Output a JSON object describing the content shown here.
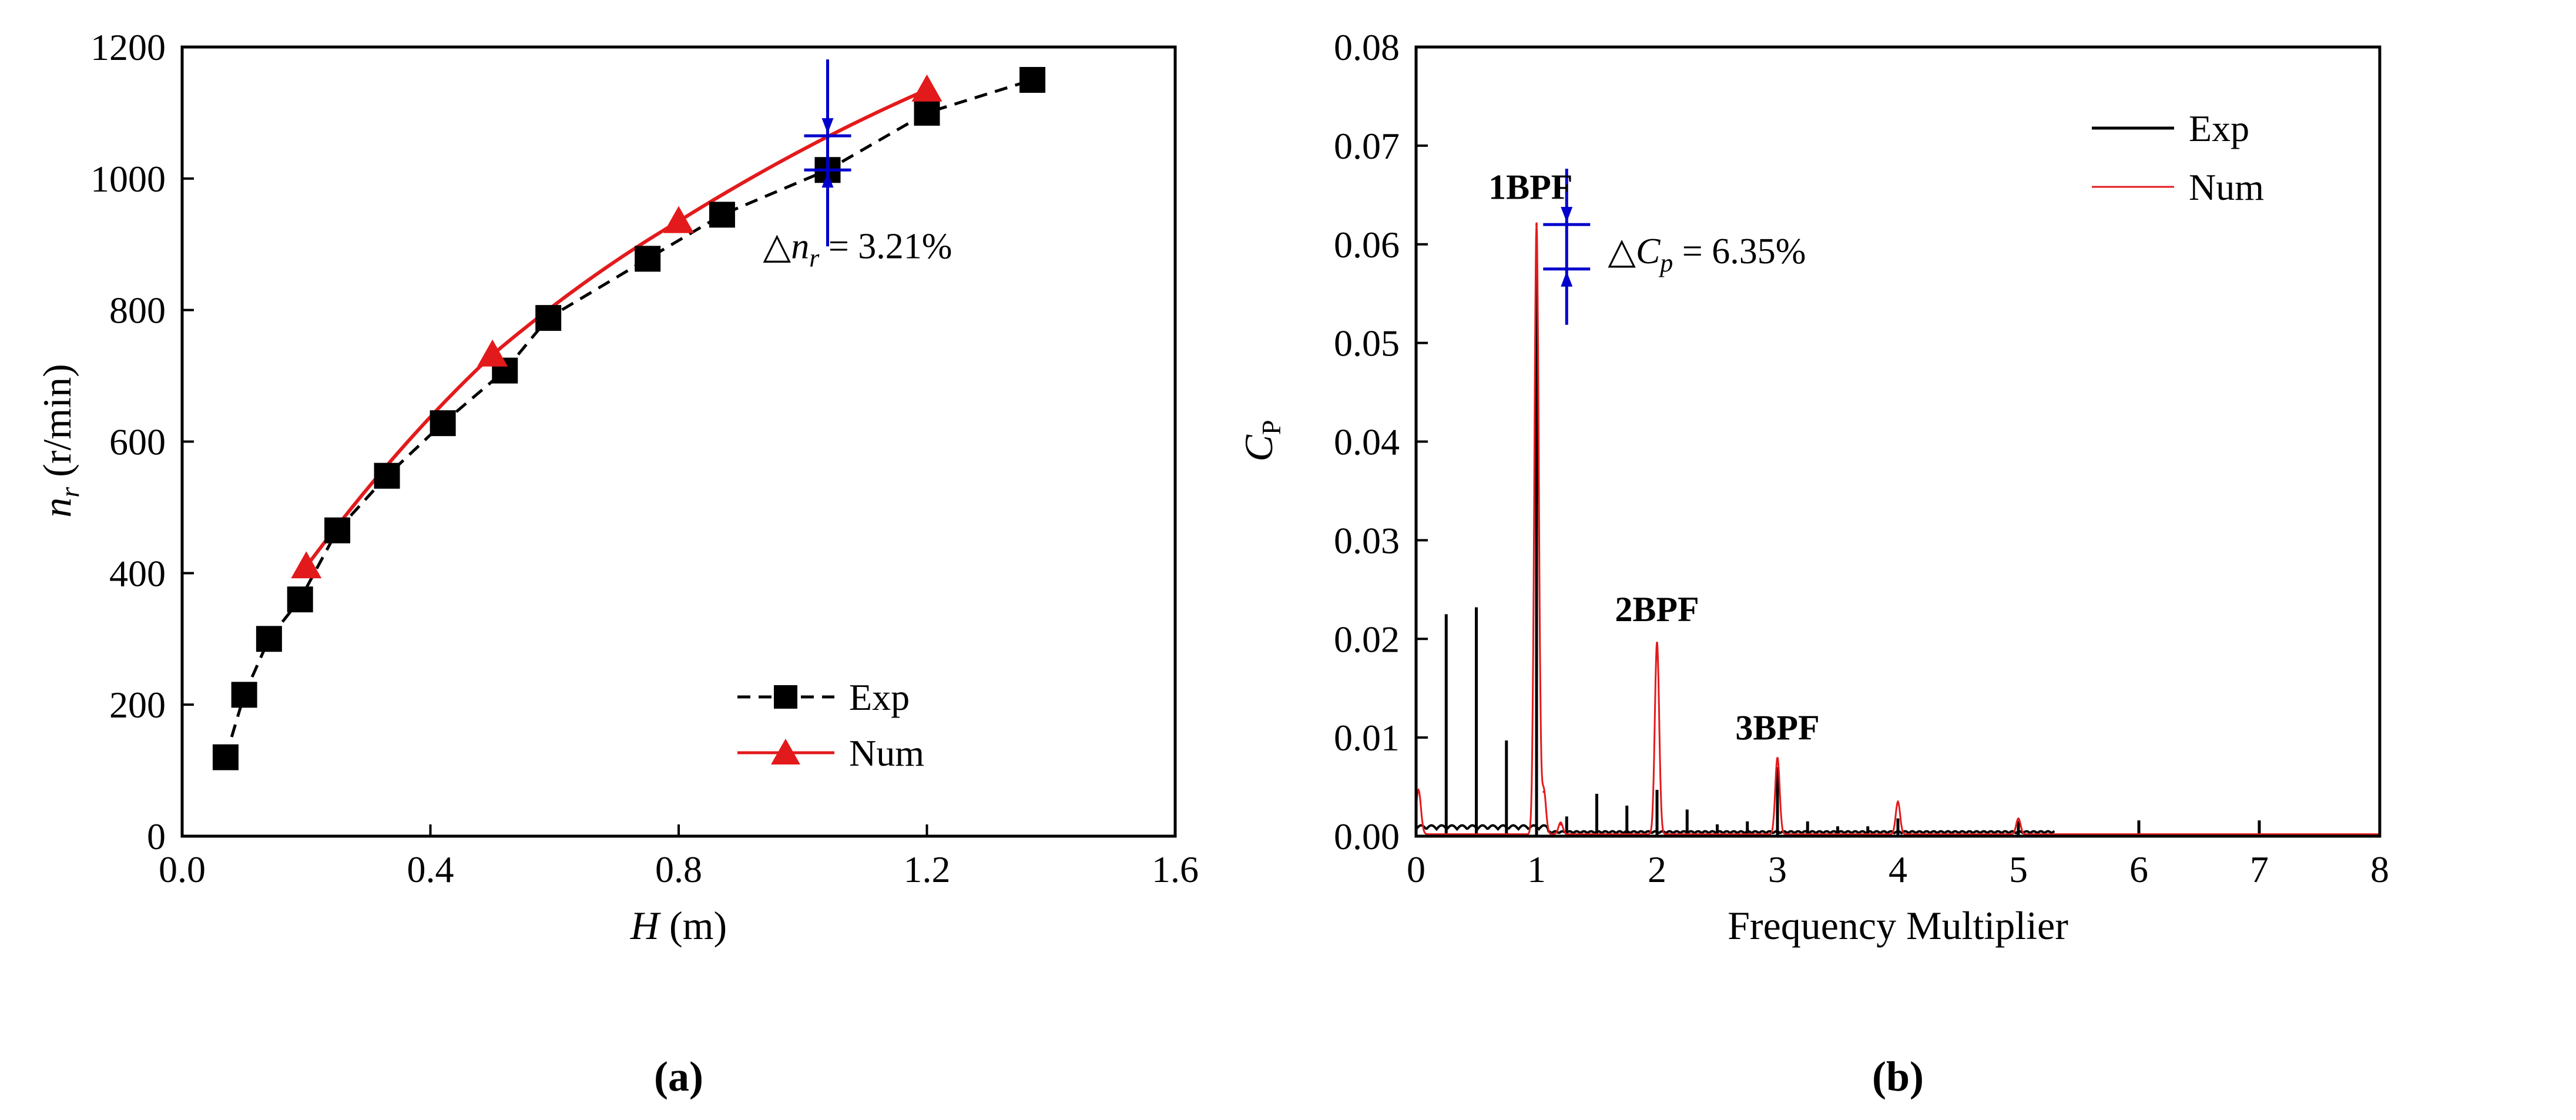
{
  "chart_data": [
    {
      "type": "line",
      "panel_label": "(a)",
      "xlabel": "H (m)",
      "ylabel": "n_r (r/min)",
      "xlim": [
        0.0,
        1.6
      ],
      "ylim": [
        0,
        1200
      ],
      "xticks": [
        0.0,
        0.4,
        0.8,
        1.2,
        1.6
      ],
      "xtick_labels": [
        "0.0",
        "0.4",
        "0.8",
        "1.2",
        "1.6"
      ],
      "yticks": [
        0,
        200,
        400,
        600,
        800,
        1000,
        1200
      ],
      "ytick_labels": [
        "0",
        "200",
        "400",
        "600",
        "800",
        "1000",
        "1200"
      ],
      "series": [
        {
          "name": "Exp",
          "style": "dashed",
          "marker": "square",
          "color": "#000000",
          "x": [
            0.07,
            0.1,
            0.14,
            0.19,
            0.25,
            0.33,
            0.42,
            0.52,
            0.59,
            0.75,
            0.87,
            1.04,
            1.2,
            1.37
          ],
          "y": [
            120,
            215,
            300,
            360,
            465,
            548,
            628,
            708,
            788,
            878,
            945,
            1013,
            1100,
            1150
          ]
        },
        {
          "name": "Num",
          "style": "solid",
          "marker": "triangle",
          "color": "#e31a1c",
          "x": [
            0.2,
            0.5,
            0.8,
            1.2
          ],
          "y": [
            410,
            732,
            935,
            1135
          ]
        }
      ],
      "annotation": {
        "prefix": "△",
        "symbol": "n",
        "subscript": "r",
        "value_text": "= 3.21%",
        "at_x": 1.04,
        "from_y": 1013,
        "to_y": 1065
      },
      "legend": {
        "position": "lower-right",
        "exp_label": "Exp",
        "num_label": "Num"
      }
    },
    {
      "type": "line",
      "panel_label": "(b)",
      "xlabel": "Frequency Multiplier",
      "ylabel": "C",
      "ylabel_subscript": "P",
      "xlim": [
        0,
        8
      ],
      "ylim": [
        0.0,
        0.08
      ],
      "xticks": [
        0,
        1,
        2,
        3,
        4,
        5,
        6,
        7,
        8
      ],
      "xtick_labels": [
        "0",
        "1",
        "2",
        "3",
        "4",
        "5",
        "6",
        "7",
        "8"
      ],
      "yticks": [
        0.0,
        0.01,
        0.02,
        0.03,
        0.04,
        0.05,
        0.06,
        0.07,
        0.08
      ],
      "ytick_labels": [
        "0.00",
        "0.01",
        "0.02",
        "0.03",
        "0.04",
        "0.05",
        "0.06",
        "0.07",
        "0.08"
      ],
      "series": [
        {
          "name": "Exp",
          "style": "spikes",
          "color": "#000000",
          "x": [
            0.25,
            0.5,
            0.75,
            1.0,
            1.25,
            1.5,
            1.75,
            2.0,
            2.25,
            2.5,
            2.75,
            3.0,
            3.25,
            3.5,
            3.75,
            4.0,
            5.0,
            6.0,
            7.0
          ],
          "y": [
            0.0225,
            0.0232,
            0.0097,
            0.0578,
            0.002,
            0.0043,
            0.0031,
            0.0047,
            0.0027,
            0.0012,
            0.0015,
            0.007,
            0.0015,
            0.001,
            0.001,
            0.0018,
            0.0015,
            0.0016,
            0.0016
          ]
        },
        {
          "name": "Num",
          "style": "peaks",
          "color": "#e31a1c",
          "x": [
            0.02,
            1.0,
            1.06,
            1.2,
            2.0,
            3.0,
            4.0,
            5.0
          ],
          "y": [
            0.0045,
            0.062,
            0.0045,
            0.0012,
            0.0195,
            0.0078,
            0.0033,
            0.0016
          ]
        }
      ],
      "peak_labels": [
        {
          "text": "1BPF",
          "at_x": 0.95,
          "at_y": 0.064
        },
        {
          "text": "2BPF",
          "at_x": 2.0,
          "at_y": 0.0212
        },
        {
          "text": "3BPF",
          "at_x": 3.0,
          "at_y": 0.0092
        }
      ],
      "annotation": {
        "prefix": "△",
        "symbol": "C",
        "subscript": "p",
        "value_text": "= 6.35%",
        "at_x": 1.25,
        "from_y": 0.0575,
        "to_y": 0.062
      },
      "legend": {
        "position": "top-right",
        "exp_label": "Exp",
        "num_label": "Num"
      }
    }
  ]
}
